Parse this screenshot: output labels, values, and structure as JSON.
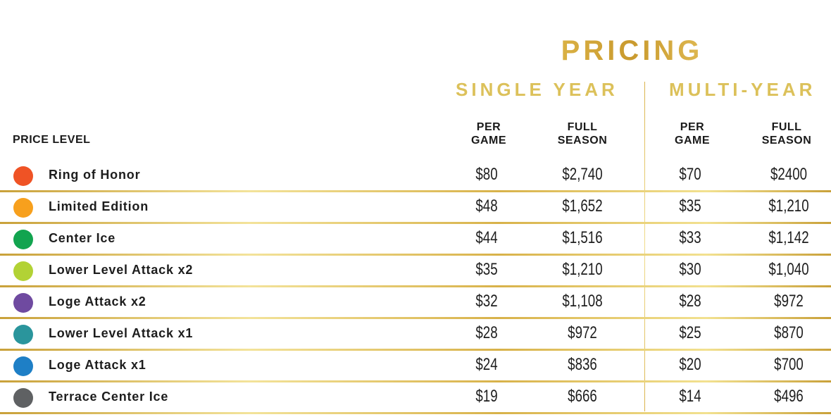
{
  "title": "PRICING",
  "groups": {
    "single": "SINGLE YEAR",
    "multi": "MULTI-YEAR"
  },
  "headers": {
    "price_level": "PRICE LEVEL",
    "single_per_game": "PER GAME",
    "single_full_season": "FULL SEASON",
    "multi_per_game": "PER GAME",
    "multi_full_season": "FULL SEASON"
  },
  "rows": [
    {
      "level": "Ring of Honor",
      "color": "#ef5325",
      "sp": "$80",
      "sf": "$2,740",
      "mp": "$70",
      "mf": "$2400"
    },
    {
      "level": "Limited Edition",
      "color": "#f7a01d",
      "sp": "$48",
      "sf": "$1,652",
      "mp": "$35",
      "mf": "$1,210"
    },
    {
      "level": "Center Ice",
      "color": "#12a44f",
      "sp": "$44",
      "sf": "$1,516",
      "mp": "$33",
      "mf": "$1,142"
    },
    {
      "level": "Lower Level Attack x2",
      "color": "#b2d235",
      "sp": "$35",
      "sf": "$1,210",
      "mp": "$30",
      "mf": "$1,040"
    },
    {
      "level": "Loge Attack x2",
      "color": "#6f4aa0",
      "sp": "$32",
      "sf": "$1,108",
      "mp": "$28",
      "mf": "$972"
    },
    {
      "level": "Lower Level Attack x1",
      "color": "#2a959c",
      "sp": "$28",
      "sf": "$972",
      "mp": "$25",
      "mf": "$870"
    },
    {
      "level": "Loge Attack x1",
      "color": "#1e7fc6",
      "sp": "$24",
      "sf": "$836",
      "mp": "$20",
      "mf": "$700"
    },
    {
      "level": "Terrace Center Ice",
      "color": "#5f6163",
      "sp": "$19",
      "sf": "$666",
      "mp": "$14",
      "mf": "$496"
    }
  ]
}
